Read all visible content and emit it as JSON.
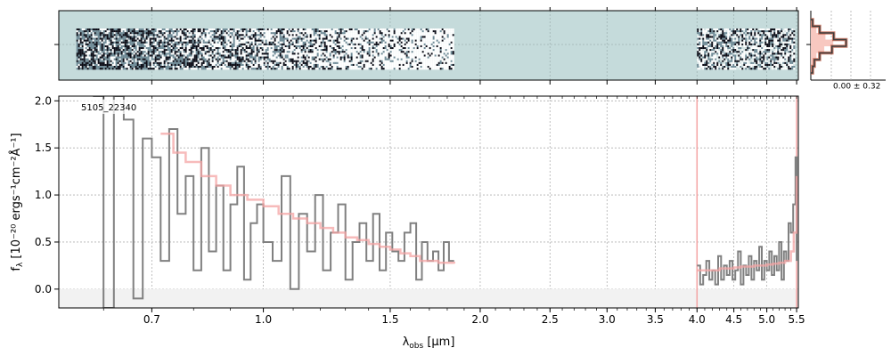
{
  "chart_data": [
    {
      "type": "heatmap",
      "description_role": "2D spectrum panel",
      "x_domain": [
        0.52,
        5.53
      ],
      "background_color": "#c5dbdb",
      "signal_regions": [
        {
          "x_from": 0.55,
          "x_to": 1.85,
          "density": "high_at_blue_end"
        },
        {
          "x_from": 4.0,
          "x_to": 5.5,
          "density": "moderate"
        }
      ],
      "grid": true
    },
    {
      "type": "line",
      "xscale": "log",
      "xlim": [
        0.52,
        5.53
      ],
      "ylim": [
        -0.2,
        2.05
      ],
      "xlabel_main": "λ",
      "xlabel_sub": "obs",
      "xlabel_unit": " [μm]",
      "ylabel_main": "f",
      "ylabel_sub": "λ",
      "ylabel_unit": " [10⁻²⁰ ergs⁻¹cm⁻²Å⁻¹]",
      "xticks": [
        0.7,
        1.0,
        1.5,
        2.0,
        2.5,
        3.0,
        3.5,
        4.0,
        4.5,
        5.0,
        5.5
      ],
      "xtick_labels": [
        "0.7",
        "1.0",
        "1.5",
        "2.0",
        "2.5",
        "3.0",
        "3.5",
        "4.0",
        "4.5",
        "5.0",
        "5.5"
      ],
      "yticks": [
        0.0,
        0.5,
        1.0,
        1.5,
        2.0
      ],
      "ytick_labels": [
        "0.0",
        "0.5",
        "1.0",
        "1.5",
        "2.0"
      ],
      "annotation": "5105_22340",
      "grid": true,
      "colors": {
        "data": "#808080",
        "model": "#f4a4a4",
        "vline": "#f4a4a4"
      },
      "vlines": [
        4.0,
        5.5
      ],
      "series": [
        {
          "role": "data_prism_blue",
          "x": [
            0.58,
            0.6,
            0.62,
            0.64,
            0.66,
            0.68,
            0.7,
            0.72,
            0.74,
            0.76,
            0.78,
            0.8,
            0.82,
            0.84,
            0.86,
            0.88,
            0.9,
            0.92,
            0.94,
            0.96,
            0.98,
            1.0,
            1.03,
            1.06,
            1.09,
            1.12,
            1.15,
            1.18,
            1.21,
            1.24,
            1.27,
            1.3,
            1.33,
            1.36,
            1.39,
            1.42,
            1.45,
            1.48,
            1.51,
            1.54,
            1.57,
            1.6,
            1.63,
            1.66,
            1.69,
            1.72,
            1.75,
            1.78,
            1.81,
            1.84
          ],
          "y": [
            2.05,
            -0.2,
            2.05,
            1.8,
            -0.1,
            1.6,
            1.4,
            0.3,
            1.7,
            0.8,
            1.2,
            0.2,
            1.5,
            0.4,
            1.1,
            0.2,
            0.9,
            1.3,
            0.1,
            0.7,
            0.9,
            0.5,
            0.3,
            1.2,
            0.0,
            0.8,
            0.4,
            1.0,
            0.2,
            0.6,
            0.9,
            0.1,
            0.5,
            0.7,
            0.3,
            0.8,
            0.2,
            0.6,
            0.4,
            0.3,
            0.6,
            0.7,
            0.1,
            0.5,
            0.3,
            0.4,
            0.2,
            0.5,
            0.3,
            0.3
          ]
        },
        {
          "role": "data_prism_red",
          "x": [
            4.0,
            4.04,
            4.08,
            4.12,
            4.16,
            4.2,
            4.24,
            4.28,
            4.32,
            4.36,
            4.4,
            4.44,
            4.48,
            4.52,
            4.56,
            4.6,
            4.64,
            4.68,
            4.72,
            4.76,
            4.8,
            4.84,
            4.88,
            4.92,
            4.96,
            5.0,
            5.04,
            5.08,
            5.12,
            5.16,
            5.2,
            5.24,
            5.28,
            5.32,
            5.36,
            5.4,
            5.44,
            5.48,
            5.5
          ],
          "y": [
            0.25,
            0.05,
            0.15,
            0.3,
            0.1,
            0.2,
            0.05,
            0.35,
            0.1,
            0.25,
            0.15,
            0.3,
            0.1,
            0.2,
            0.4,
            0.05,
            0.25,
            0.15,
            0.35,
            0.1,
            0.3,
            0.2,
            0.45,
            0.1,
            0.3,
            0.2,
            0.4,
            0.15,
            0.35,
            0.2,
            0.5,
            0.1,
            0.4,
            0.3,
            0.7,
            0.6,
            0.9,
            1.4,
            0.3
          ]
        },
        {
          "role": "model_blue",
          "x": [
            0.72,
            0.75,
            0.78,
            0.82,
            0.86,
            0.9,
            0.95,
            1.0,
            1.05,
            1.1,
            1.15,
            1.2,
            1.25,
            1.3,
            1.35,
            1.4,
            1.45,
            1.5,
            1.55,
            1.6,
            1.65,
            1.7,
            1.75,
            1.8,
            1.84
          ],
          "y": [
            1.65,
            1.45,
            1.35,
            1.2,
            1.1,
            1.0,
            0.95,
            0.88,
            0.8,
            0.75,
            0.7,
            0.65,
            0.6,
            0.55,
            0.52,
            0.48,
            0.45,
            0.42,
            0.38,
            0.35,
            0.3,
            0.3,
            0.28,
            0.28,
            0.27
          ]
        },
        {
          "role": "model_red",
          "x": [
            4.0,
            4.1,
            4.2,
            4.3,
            4.4,
            4.5,
            4.6,
            4.7,
            4.8,
            4.9,
            5.0,
            5.1,
            5.2,
            5.3,
            5.4,
            5.45,
            5.5
          ],
          "y": [
            0.2,
            0.2,
            0.2,
            0.22,
            0.22,
            0.23,
            0.24,
            0.24,
            0.25,
            0.25,
            0.26,
            0.27,
            0.28,
            0.3,
            0.4,
            0.6,
            1.2
          ]
        }
      ]
    },
    {
      "type": "bar",
      "description_role": "pixel histogram side panel",
      "label": "0.00 ± 0.32",
      "bins": [
        -1.0,
        -0.75,
        -0.5,
        -0.25,
        0.0,
        0.25,
        0.5,
        0.75,
        1.0
      ],
      "counts": [
        0.05,
        0.25,
        0.65,
        1.0,
        0.6,
        0.25,
        0.1,
        0.05
      ],
      "colors": {
        "fill": "#f8c8c0",
        "step": "#3b3b3b",
        "curve": "#c0604a"
      }
    }
  ]
}
